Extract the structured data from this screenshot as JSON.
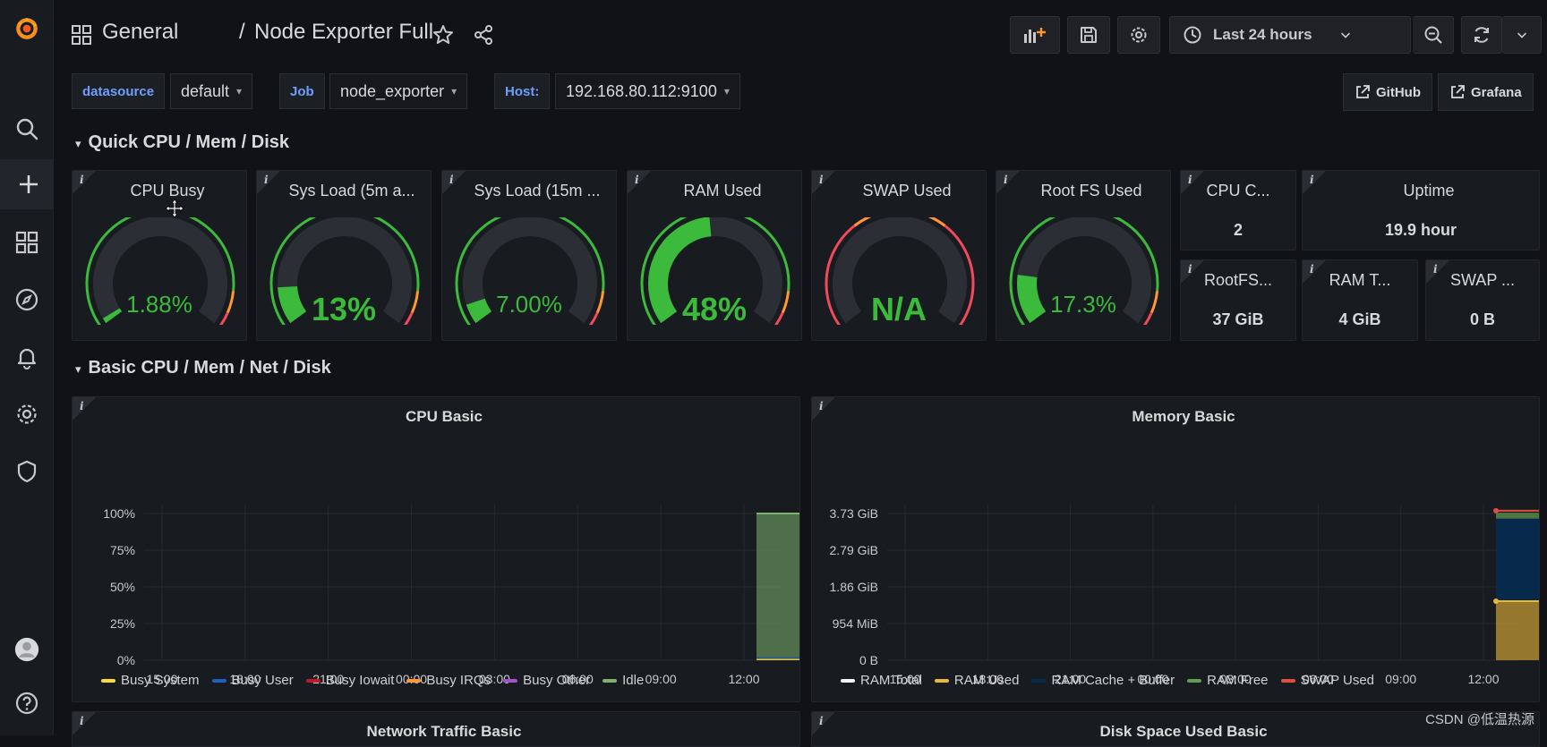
{
  "breadcrumb": {
    "folder": "General",
    "separator": "/",
    "dashboard": "Node Exporter Full"
  },
  "toolbar": {
    "time_range": "Last 24 hours"
  },
  "variables": [
    {
      "label": "datasource",
      "value": "default"
    },
    {
      "label": "Job",
      "value": "node_exporter"
    },
    {
      "label": "Host:",
      "value": "192.168.80.112:9100"
    }
  ],
  "links": {
    "github": "GitHub",
    "grafana": "Grafana"
  },
  "rows": {
    "quick": "Quick CPU / Mem / Disk",
    "basic": "Basic CPU / Mem / Net / Disk"
  },
  "gauges": [
    {
      "title": "CPU Busy",
      "value": "1.88%",
      "fraction": 0.0188,
      "outer": "green-red"
    },
    {
      "title": "Sys Load (5m a...",
      "value": "13%",
      "fraction": 0.13,
      "outer": "green-red"
    },
    {
      "title": "Sys Load (15m ...",
      "value": "7.00%",
      "fraction": 0.07,
      "outer": "green-red"
    },
    {
      "title": "RAM Used",
      "value": "48%",
      "fraction": 0.48,
      "outer": "green-red"
    },
    {
      "title": "SWAP Used",
      "value": "N/A",
      "fraction": 0,
      "outer": "red"
    },
    {
      "title": "Root FS Used",
      "value": "17.3%",
      "fraction": 0.173,
      "outer": "green-red"
    }
  ],
  "stats": [
    {
      "title": "CPU C...",
      "value": "2"
    },
    {
      "title": "Uptime",
      "value": "19.9 hour"
    },
    {
      "title": "RootFS...",
      "value": "37 GiB"
    },
    {
      "title": "RAM T...",
      "value": "4 GiB"
    },
    {
      "title": "SWAP ...",
      "value": "0 B"
    }
  ],
  "info_glyph": "i",
  "colors": {
    "accent_green": "#3bba3b",
    "gauge_track": "#2b2e34",
    "var_label": "#6e9fff",
    "threshold_orange": "#ff9830",
    "threshold_red": "#f2495c"
  },
  "chart_data": [
    {
      "type": "area",
      "title": "CPU Basic",
      "y_ticks": [
        "100%",
        "75%",
        "50%",
        "25%",
        "0%"
      ],
      "ylim": [
        0,
        100
      ],
      "x_ticks": [
        "15:00",
        "18:00",
        "21:00",
        "00:00",
        "03:00",
        "06:00",
        "09:00",
        "12:00"
      ],
      "series": [
        {
          "name": "Busy System",
          "color": "#fade2a",
          "values": [
            1
          ]
        },
        {
          "name": "Busy User",
          "color": "#1f60c4",
          "values": [
            1
          ]
        },
        {
          "name": "Busy Iowait",
          "color": "#c4162a",
          "values": [
            0
          ]
        },
        {
          "name": "Busy IRQs",
          "color": "#ff9830",
          "values": [
            0
          ]
        },
        {
          "name": "Busy Other",
          "color": "#a352cc",
          "values": [
            0
          ]
        },
        {
          "name": "Idle",
          "color": "#7eb26d",
          "values": [
            98
          ]
        }
      ]
    },
    {
      "type": "area",
      "title": "Memory Basic",
      "y_ticks": [
        "3.73 GiB",
        "2.79 GiB",
        "1.86 GiB",
        "954 MiB",
        "0 B"
      ],
      "ylim": [
        0,
        3.73
      ],
      "x_ticks": [
        "15:00",
        "18:00",
        "21:00",
        "00:00",
        "03:00",
        "06:00",
        "09:00",
        "12:00"
      ],
      "series": [
        {
          "name": "RAM Total",
          "color": "#f4f5f5",
          "values": [
            3.8
          ]
        },
        {
          "name": "RAM Used",
          "color": "#eab839",
          "values": [
            1.5
          ]
        },
        {
          "name": "RAM Cache + Buffer",
          "color": "#052b51",
          "values": [
            2.1
          ]
        },
        {
          "name": "RAM Free",
          "color": "#629e51",
          "values": [
            0.15
          ]
        },
        {
          "name": "SWAP Used",
          "color": "#e24d42",
          "values": [
            0
          ]
        }
      ]
    }
  ],
  "bottom_panels": [
    "Network Traffic Basic",
    "Disk Space Used Basic"
  ],
  "watermark": "CSDN @低温热源"
}
